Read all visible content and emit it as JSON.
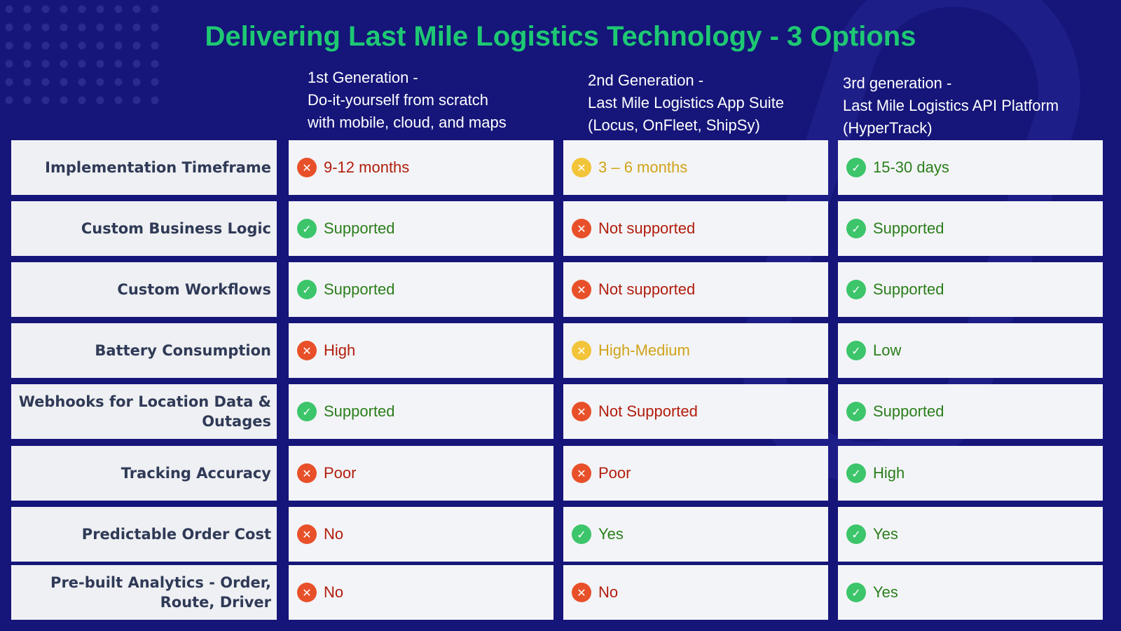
{
  "title": "Delivering Last Mile Logistics Technology - 3 Options",
  "columns": [
    {
      "line1": "1st Generation -",
      "line2": "Do-it-yourself from scratch",
      "line3": "with mobile, cloud, and maps"
    },
    {
      "line1": "2nd Generation -",
      "line2": "Last Mile Logistics App Suite",
      "line3": "(Locus, OnFleet, ShipSy)"
    },
    {
      "line1": "3rd generation -",
      "line2": "Last Mile Logistics API Platform",
      "line3": "(HyperTrack)"
    }
  ],
  "rows": [
    {
      "label": "Implementation Timeframe",
      "c1": {
        "text": "9-12 months",
        "status": "bad",
        "icon": "x-circle-icon"
      },
      "c2": {
        "text": "3 – 6 months",
        "status": "warn",
        "icon": "x-circle-icon"
      },
      "c3": {
        "text": "15-30 days",
        "status": "good",
        "icon": "check-circle-icon"
      }
    },
    {
      "label": "Custom Business Logic",
      "c1": {
        "text": "Supported",
        "status": "good",
        "icon": "check-circle-icon"
      },
      "c2": {
        "text": "Not supported",
        "status": "bad",
        "icon": "x-circle-icon"
      },
      "c3": {
        "text": "Supported",
        "status": "good",
        "icon": "check-circle-icon"
      }
    },
    {
      "label": "Custom Workflows",
      "c1": {
        "text": "Supported",
        "status": "good",
        "icon": "check-circle-icon"
      },
      "c2": {
        "text": "Not supported",
        "status": "bad",
        "icon": "x-circle-icon"
      },
      "c3": {
        "text": "Supported",
        "status": "good",
        "icon": "check-circle-icon"
      }
    },
    {
      "label": "Battery Consumption",
      "c1": {
        "text": "High",
        "status": "bad",
        "icon": "x-circle-icon"
      },
      "c2": {
        "text": "High-Medium",
        "status": "warn",
        "icon": "x-circle-icon"
      },
      "c3": {
        "text": "Low",
        "status": "good",
        "icon": "check-circle-icon"
      }
    },
    {
      "label": "Webhooks for Location Data & Outages",
      "c1": {
        "text": "Supported",
        "status": "good",
        "icon": "check-circle-icon"
      },
      "c2": {
        "text": "Not Supported",
        "status": "bad",
        "icon": "x-circle-icon"
      },
      "c3": {
        "text": "Supported",
        "status": "good",
        "icon": "check-circle-icon"
      }
    },
    {
      "label": "Tracking Accuracy",
      "c1": {
        "text": "Poor",
        "status": "bad",
        "icon": "x-circle-icon"
      },
      "c2": {
        "text": "Poor",
        "status": "bad",
        "icon": "x-circle-icon"
      },
      "c3": {
        "text": "High",
        "status": "good",
        "icon": "check-circle-icon"
      }
    },
    {
      "label": "Predictable Order Cost",
      "c1": {
        "text": "No",
        "status": "bad",
        "icon": "x-circle-icon"
      },
      "c2": {
        "text": "Yes",
        "status": "good",
        "icon": "check-circle-icon"
      },
      "c3": {
        "text": "Yes",
        "status": "good",
        "icon": "check-circle-icon"
      }
    },
    {
      "label": "Pre-built Analytics - Order, Route, Driver",
      "c1": {
        "text": "No",
        "status": "bad",
        "icon": "x-circle-icon"
      },
      "c2": {
        "text": "No",
        "status": "bad",
        "icon": "x-circle-icon"
      },
      "c3": {
        "text": "Yes",
        "status": "good",
        "icon": "check-circle-icon"
      }
    }
  ],
  "colors": {
    "background": "#15157a",
    "title": "#1ec873",
    "good": "#3cc56a",
    "warn": "#f2c439",
    "bad": "#e8502a"
  }
}
